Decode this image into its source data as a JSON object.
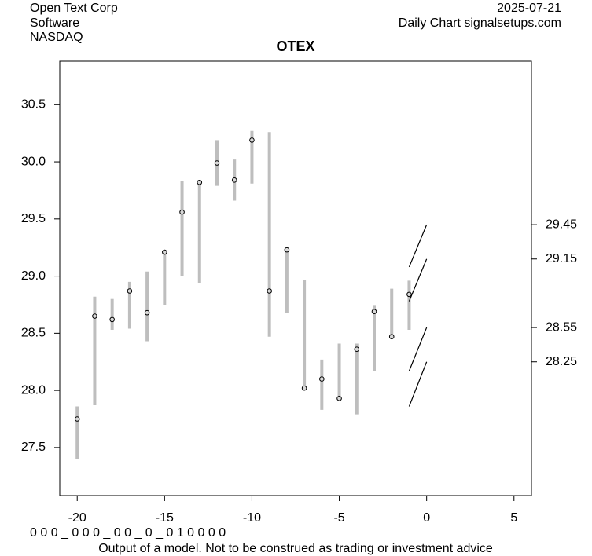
{
  "chart_data": {
    "type": "range",
    "title": "OTEX",
    "company": "Open Text Corp",
    "sector": "Software",
    "exchange": "NASDAQ",
    "date": "2025-07-21",
    "source": "Daily Chart signalsetups.com",
    "code": "0 0 0 _ 0 0 0 _ 0 0 _ 0 _ 0 1 0 0 0 0",
    "disclaimer": "Output of a model. Not to be construed as trading or investment advice",
    "x": [
      -20,
      -19,
      -18,
      -17,
      -16,
      -15,
      -14,
      -13,
      -12,
      -11,
      -10,
      -9,
      -8,
      -7,
      -6,
      -5,
      -4,
      -3,
      -2,
      -1
    ],
    "low": [
      27.4,
      27.87,
      28.53,
      28.54,
      28.43,
      28.75,
      29.0,
      28.94,
      29.79,
      29.66,
      29.81,
      28.47,
      28.68,
      28.02,
      27.83,
      27.92,
      27.79,
      28.17,
      28.45,
      28.53
    ],
    "high": [
      27.86,
      28.82,
      28.8,
      28.95,
      29.04,
      29.21,
      29.83,
      29.84,
      30.19,
      30.02,
      30.27,
      30.26,
      29.25,
      28.97,
      28.27,
      28.41,
      28.41,
      28.74,
      28.89,
      28.96
    ],
    "close": [
      27.75,
      28.65,
      28.62,
      28.87,
      28.68,
      29.21,
      29.56,
      29.82,
      29.99,
      29.84,
      30.19,
      28.87,
      29.23,
      28.02,
      28.1,
      27.93,
      28.36,
      28.69,
      28.47,
      28.84
    ],
    "bar_color": "#bebebe",
    "point_color": "#d9d9d9",
    "projections": [
      {
        "x": [
          -1,
          0
        ],
        "values": [
          29.08,
          29.45
        ]
      },
      {
        "x": [
          -1,
          0
        ],
        "values": [
          28.78,
          29.15
        ]
      },
      {
        "x": [
          -1,
          0
        ],
        "values": [
          28.17,
          28.55
        ]
      },
      {
        "x": [
          -1,
          0
        ],
        "values": [
          27.86,
          28.25
        ]
      }
    ],
    "projection_color": "#000000",
    "xlim": [
      -21,
      6
    ],
    "xticks": [
      -20,
      -15,
      -10,
      -5,
      0,
      5
    ],
    "ylim": [
      27.08,
      30.88
    ],
    "yticks": [
      27.5,
      {
        "value": 28,
        "label": "28.0"
      },
      28.5,
      {
        "value": 29,
        "label": "29.0"
      },
      29.5,
      {
        "value": 30,
        "label": "30.0"
      },
      30.5
    ],
    "y2lim": [
      27.08,
      30.88
    ],
    "y2ticks": [
      28.25,
      28.55,
      29.15,
      29.45
    ]
  }
}
